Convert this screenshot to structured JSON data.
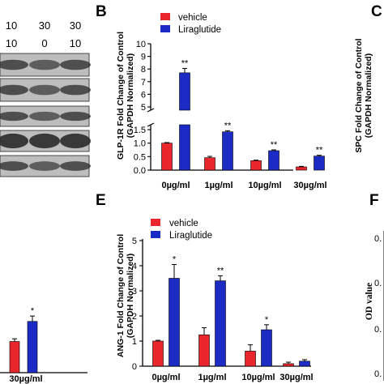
{
  "panel_letters": {
    "b": "B",
    "c": "C",
    "e": "E",
    "f": "F"
  },
  "lane_labels": {
    "row1": [
      "10",
      "30",
      "30"
    ],
    "row2": [
      "10",
      "0",
      "10"
    ]
  },
  "colors": {
    "vehicle": "#e8262b",
    "liraglutide": "#1b2bc4",
    "blot_dark": "#2a2a2a",
    "blot_bg": "#bdbdbd"
  },
  "partial_panel_a": {
    "category": "30µg/ml",
    "annotation": "*",
    "values": [
      0.7,
      1.15
    ],
    "errors": [
      0.06,
      0.12
    ]
  },
  "partial_panel_c": {
    "ylabel_line1": "SPC Fold Change of Control",
    "ylabel_line2": "(GAPDH Normalized)"
  },
  "partial_panel_f": {
    "ylabel": "OD value",
    "ticks": [
      "0.",
      "0.",
      "0.",
      "0."
    ]
  },
  "chart_data": [
    {
      "id": "B",
      "type": "bar",
      "ylabel_line1": "GLP-1R Fold Change of Control",
      "ylabel_line2": "(GAPDH Normalized)",
      "categories": [
        "0µg/ml",
        "1µg/ml",
        "10µg/ml",
        "30µg/ml"
      ],
      "series": [
        {
          "name": "vehicle",
          "values": [
            1.0,
            0.46,
            0.35,
            0.12
          ],
          "errors": [
            0.02,
            0.05,
            0.02,
            0.02
          ]
        },
        {
          "name": "Liraglutide",
          "values": [
            7.7,
            1.42,
            0.72,
            0.52
          ],
          "errors": [
            0.35,
            0.04,
            0.03,
            0.03
          ]
        }
      ],
      "annotations": [
        "**",
        "**",
        "**",
        "**"
      ],
      "axis_break": {
        "lower": [
          0,
          1.5
        ],
        "upper": [
          5,
          10
        ]
      },
      "yticks_lower": [
        "0.0",
        "0.5",
        "1.0",
        "1.5"
      ],
      "yticks_upper": [
        "5",
        "6",
        "7",
        "8",
        "9",
        "10"
      ],
      "legend": [
        "vehicle",
        "Liraglutide"
      ]
    },
    {
      "id": "E",
      "type": "bar",
      "ylabel_line1": "ANG-1 Fold Change of Control",
      "ylabel_line2": "(GAPDH Normalized)",
      "categories": [
        "0µg/ml",
        "1µg/ml",
        "10µg/ml",
        "30µg/ml"
      ],
      "series": [
        {
          "name": "vehicle",
          "values": [
            1.0,
            1.25,
            0.6,
            0.1
          ],
          "errors": [
            0.03,
            0.28,
            0.25,
            0.06
          ]
        },
        {
          "name": "Liraglutide",
          "values": [
            3.5,
            3.4,
            1.45,
            0.2
          ],
          "errors": [
            0.55,
            0.2,
            0.2,
            0.06
          ]
        }
      ],
      "annotations": [
        "*",
        "**",
        "*",
        ""
      ],
      "ylim": [
        0,
        5
      ],
      "yticks": [
        "0",
        "1",
        "2",
        "3",
        "4",
        "5"
      ],
      "legend": [
        "vehicle",
        "Liraglutide"
      ]
    }
  ]
}
